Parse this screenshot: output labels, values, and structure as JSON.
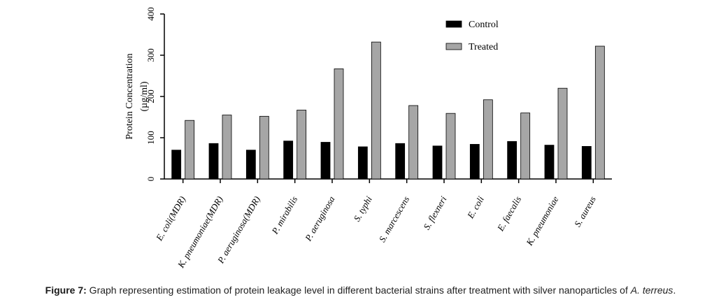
{
  "chart_data": {
    "type": "bar",
    "categories": [
      "E. coli(MDR)",
      "K. pneumoniae(MDR)",
      "P. aeruginosa(MDR)",
      "P. mirabilis",
      "P. aeruginosa",
      "S. typhi",
      "S. marcescens",
      "S. flexneri",
      "E. coli",
      "E. faecalis",
      "K. pneumoniae",
      "S. aureus"
    ],
    "series": [
      {
        "name": "Control",
        "color": "#000000",
        "values": [
          70,
          86,
          70,
          92,
          89,
          78,
          86,
          80,
          84,
          91,
          82,
          79
        ]
      },
      {
        "name": "Treated",
        "color": "#a6a6a6",
        "values": [
          142,
          155,
          152,
          167,
          267,
          332,
          178,
          159,
          192,
          160,
          220,
          322
        ]
      }
    ],
    "ylabel_line1": "Protein Concentration",
    "ylabel_line2": "(µg/ml)",
    "ylim": [
      0,
      400
    ],
    "yticks": [
      0,
      100,
      200,
      300,
      400
    ],
    "legend_position": "top-right",
    "grid": false
  },
  "caption": {
    "label": "Figure 7:",
    "text": " Graph representing estimation of protein leakage level in different bacterial strains after treatment with silver nanoparticles of ",
    "italic": "A. terreus",
    "end": "."
  }
}
